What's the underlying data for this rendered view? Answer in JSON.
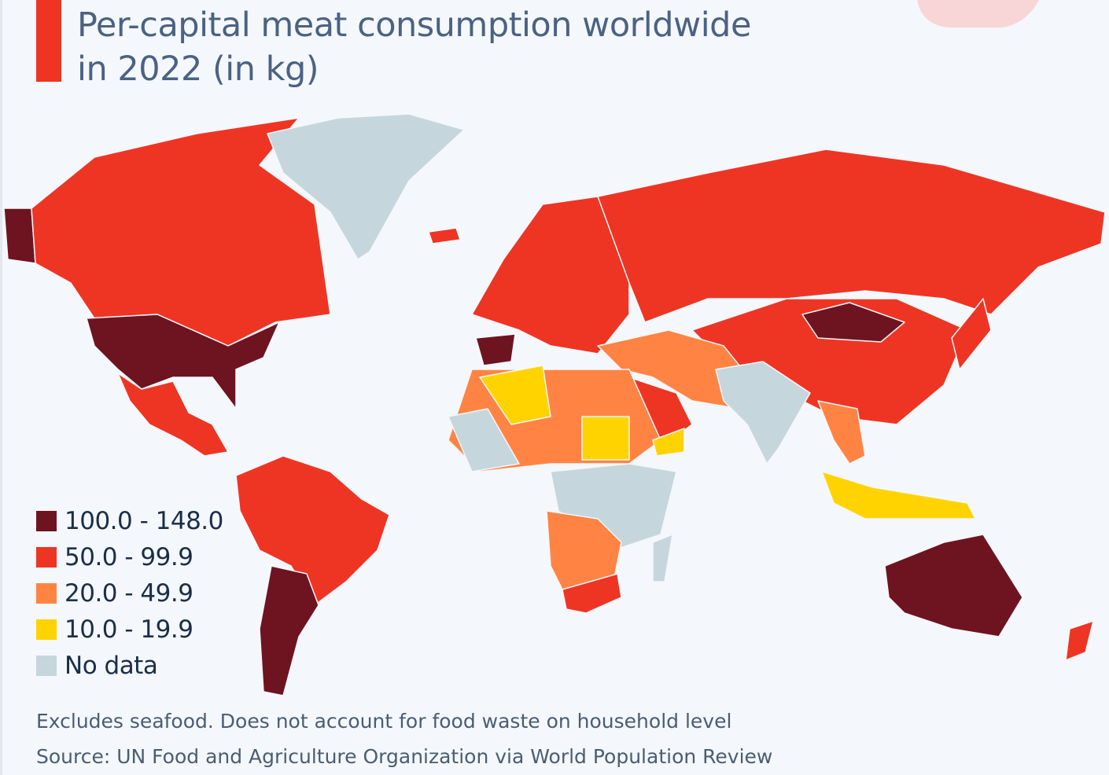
{
  "header": {
    "title_line1": "Per-capital meat consumption worldwide",
    "title_line2": "in 2022 (in kg)",
    "accent_color": "#ee3524"
  },
  "legend": [
    {
      "key": "c100",
      "label": "100.0 - 148.0",
      "color": "#6d1420"
    },
    {
      "key": "c50",
      "label": "50.0 - 99.9",
      "color": "#ee3524"
    },
    {
      "key": "c20",
      "label": "20.0 - 49.9",
      "color": "#ff8444"
    },
    {
      "key": "c10",
      "label": "10.0 - 19.9",
      "color": "#ffd300"
    },
    {
      "key": "nd",
      "label": "No data",
      "color": "#c6d6dd"
    }
  ],
  "footer": {
    "note": "Excludes seafood. Does not account for food waste on household level",
    "source": "Source: UN Food and Agriculture Organization via World Population Review"
  }
}
